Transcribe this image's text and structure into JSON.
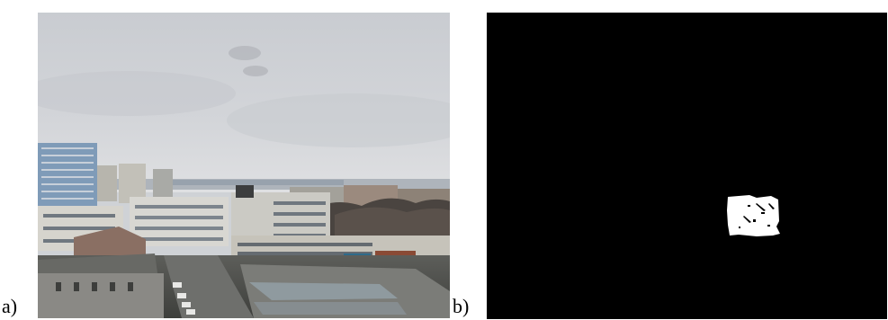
{
  "panels": [
    {
      "label": "a)",
      "content": "photo-city-skyline"
    },
    {
      "label": "b)",
      "content": "binary-segmentation-mask"
    }
  ],
  "colors": {
    "sky": "#cfd2d6",
    "mask_background": "#000000",
    "mask_region": "#ffffff"
  }
}
